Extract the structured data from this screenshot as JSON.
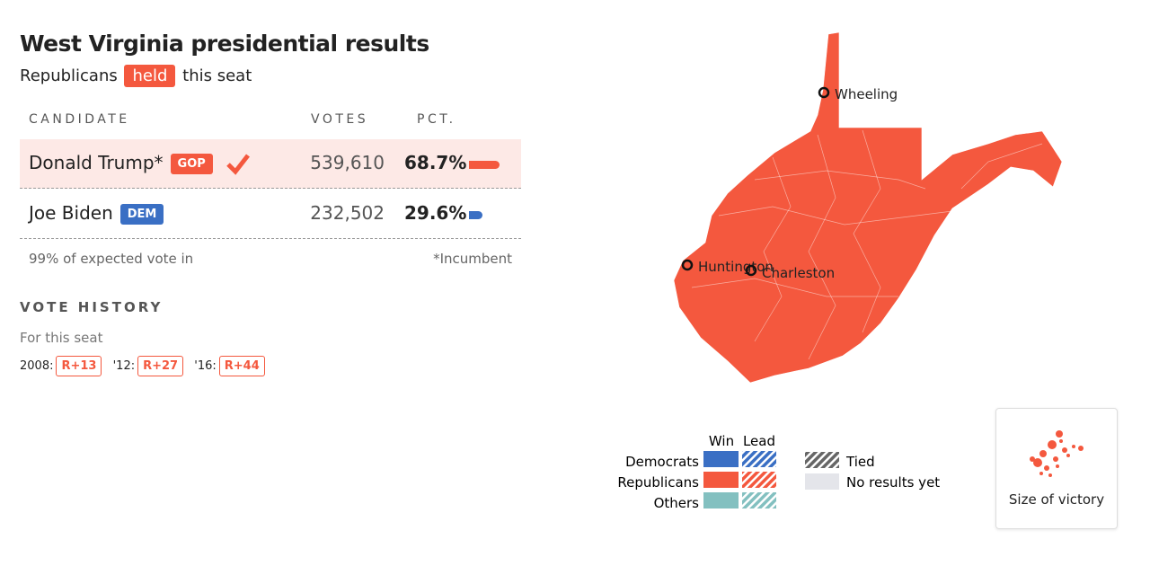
{
  "header": {
    "title": "West Virginia presidential results",
    "subtitle": {
      "before": "Republicans",
      "badge": "held",
      "after": "this seat"
    }
  },
  "table": {
    "columns": [
      "CANDIDATE",
      "VOTES",
      "PCT."
    ],
    "rows": [
      {
        "name": "Donald Trump*",
        "party": "GOP",
        "votes": "539,610",
        "pct": "68.7%"
      },
      {
        "name": "Joe Biden",
        "party": "DEM",
        "votes": "232,502",
        "pct": "29.6%"
      }
    ],
    "footnote": "99% of expected vote in",
    "incumbent_note": "*Incumbent"
  },
  "history": {
    "title": "VOTE HISTORY",
    "subtitle": "For this seat",
    "items": [
      {
        "year": "2008:",
        "margin": "R+13"
      },
      {
        "year": "'12:",
        "margin": "R+27"
      },
      {
        "year": "'16:",
        "margin": "R+44"
      }
    ]
  },
  "map": {
    "cities": [
      "Wheeling",
      "Huntington",
      "Charleston"
    ]
  },
  "legend": {
    "columns": [
      "Win",
      "Lead"
    ],
    "rows": [
      "Democrats",
      "Republicans",
      "Others"
    ],
    "tied": "Tied",
    "no_results": "No results yet"
  },
  "button": {
    "label": "Size of victory"
  }
}
